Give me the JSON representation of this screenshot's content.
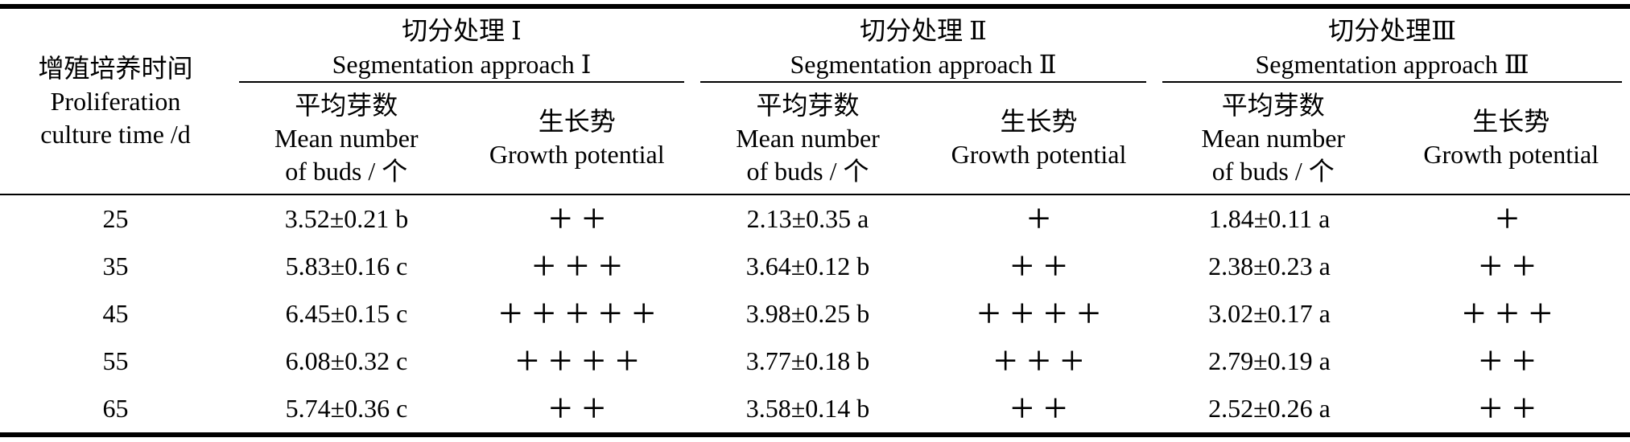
{
  "page": {
    "background_color": "#ffffff",
    "text_color": "#000000"
  },
  "table": {
    "corner_header": {
      "line1_zh": "增殖培养时间",
      "line2_en": "Proliferation",
      "line3_en": "culture time /d"
    },
    "groups": [
      {
        "title_zh": "切分处理 Ⅰ",
        "title_en": "Segmentation approach Ⅰ",
        "buds_header": {
          "zh": "平均芽数",
          "en_line1": "Mean number",
          "en_line2": "of buds / 个"
        },
        "growth_header": {
          "zh": "生长势",
          "en": "Growth potential"
        }
      },
      {
        "title_zh": "切分处理 Ⅱ",
        "title_en": "Segmentation approach Ⅱ",
        "buds_header": {
          "zh": "平均芽数",
          "en_line1": "Mean number",
          "en_line2": "of buds / 个"
        },
        "growth_header": {
          "zh": "生长势",
          "en": "Growth potential"
        }
      },
      {
        "title_zh": "切分处理Ⅲ",
        "title_en": "Segmentation approach Ⅲ",
        "buds_header": {
          "zh": "平均芽数",
          "en_line1": "Mean number",
          "en_line2": "of buds / 个"
        },
        "growth_header": {
          "zh": "生长势",
          "en": "Growth potential"
        }
      }
    ],
    "rows": [
      {
        "time": "25",
        "g1_buds": "3.52±0.21 b",
        "g1_growth": "++",
        "g2_buds": "2.13±0.35 a",
        "g2_growth": "+",
        "g3_buds": "1.84±0.11 a",
        "g3_growth": "+"
      },
      {
        "time": "35",
        "g1_buds": "5.83±0.16 c",
        "g1_growth": "+++",
        "g2_buds": "3.64±0.12 b",
        "g2_growth": "++",
        "g3_buds": "2.38±0.23 a",
        "g3_growth": "++"
      },
      {
        "time": "45",
        "g1_buds": "6.45±0.15 c",
        "g1_growth": "+++++",
        "g2_buds": "3.98±0.25 b",
        "g2_growth": "++++",
        "g3_buds": "3.02±0.17 a",
        "g3_growth": "+++"
      },
      {
        "time": "55",
        "g1_buds": "6.08±0.32 c",
        "g1_growth": "++++",
        "g2_buds": "3.77±0.18 b",
        "g2_growth": "+++",
        "g3_buds": "2.79±0.19 a",
        "g3_growth": "++"
      },
      {
        "time": "65",
        "g1_buds": "5.74±0.36 c",
        "g1_growth": "++",
        "g2_buds": "3.58±0.14 b",
        "g2_growth": "++",
        "g3_buds": "2.52±0.26 a",
        "g3_growth": "++"
      }
    ]
  }
}
